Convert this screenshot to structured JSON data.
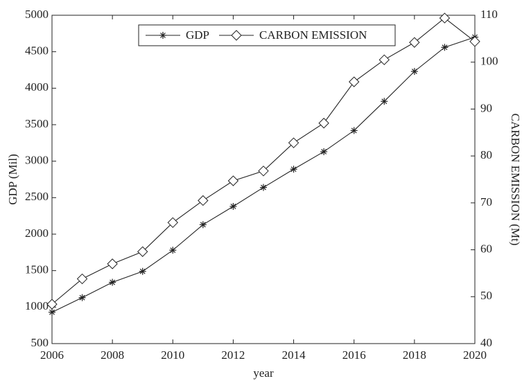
{
  "chart_data": {
    "type": "line",
    "x_label": "year",
    "y_label": "GDP (Mil)",
    "y2_label": "CARBON EMISSION (Mt)",
    "x": [
      2006,
      2007,
      2008,
      2009,
      2010,
      2011,
      2012,
      2013,
      2014,
      2015,
      2016,
      2017,
      2018,
      2019,
      2020
    ],
    "series": [
      {
        "name": "GDP",
        "color": "#222222",
        "marker": "star",
        "values": [
          930,
          1130,
          1340,
          1490,
          1780,
          2130,
          2380,
          2640,
          2890,
          3130,
          3420,
          3820,
          4230,
          4560,
          4700
        ]
      },
      {
        "name": "CARBON EMISSION",
        "color": "#222222",
        "marker": "diamond",
        "axis": "y2",
        "values": [
          48.4,
          53.8,
          57,
          59.6,
          65.8,
          70.5,
          74.7,
          76.8,
          82.8,
          87,
          95.8,
          100.5,
          104.2,
          109.4,
          104.4
        ]
      }
    ],
    "xlim": [
      2006,
      2020
    ],
    "xticks": [
      2006,
      2008,
      2010,
      2012,
      2014,
      2016,
      2018,
      2020
    ],
    "ylim": [
      500,
      5000
    ],
    "yticks": [
      500,
      1000,
      1500,
      2000,
      2500,
      3000,
      3500,
      4000,
      4500,
      5000
    ],
    "y2lim": [
      40,
      110
    ],
    "y2ticks": [
      40,
      50,
      60,
      70,
      80,
      90,
      100,
      110
    ],
    "legend": "top-center",
    "grid": false
  }
}
